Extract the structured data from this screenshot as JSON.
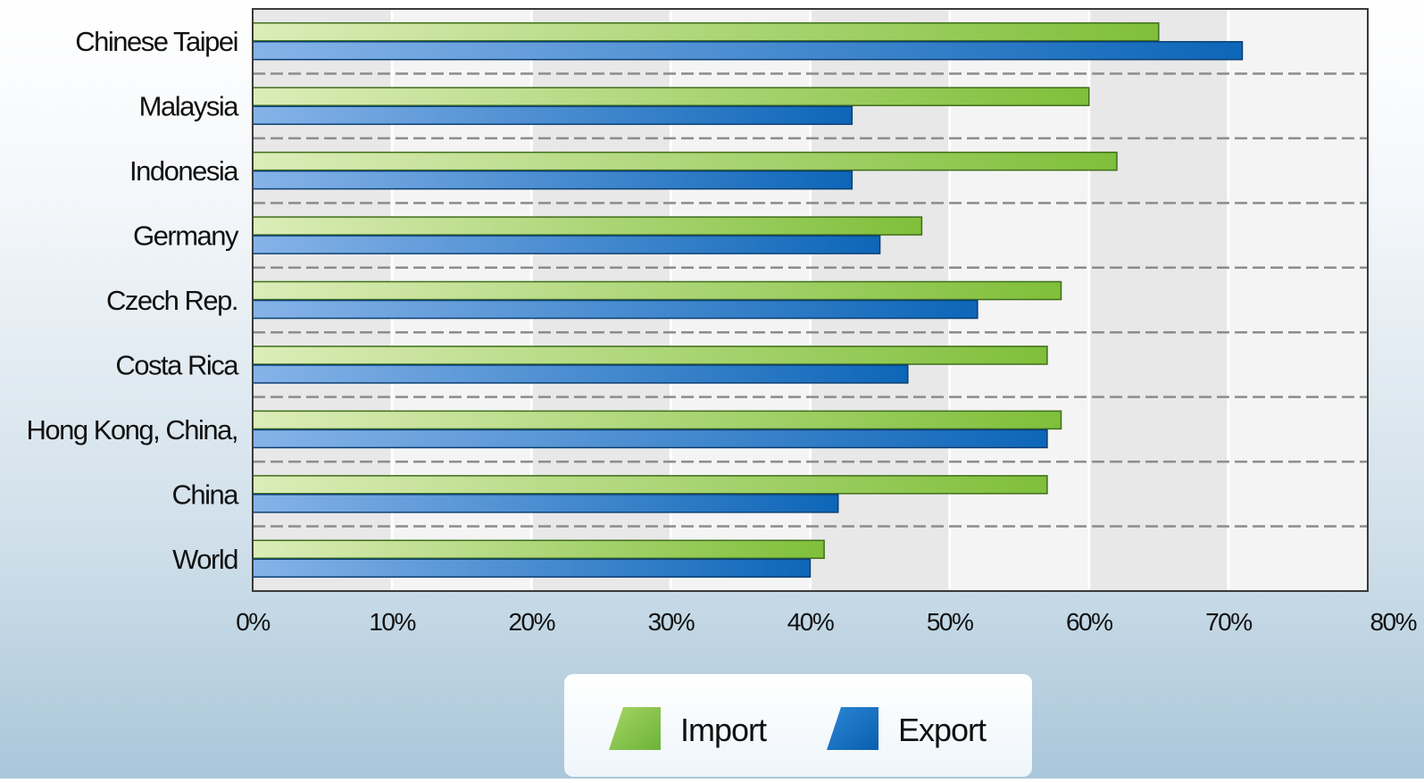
{
  "chart_data": {
    "type": "bar",
    "orientation": "horizontal",
    "categories": [
      "Chinese Taipei",
      "Malaysia",
      "Indonesia",
      "Germany",
      "Czech Rep.",
      "Costa Rica",
      "Hong Kong, China,",
      "China",
      "World"
    ],
    "series": [
      {
        "name": "Import",
        "values": [
          65,
          60,
          62,
          48,
          58,
          57,
          58,
          57,
          41
        ],
        "color": "#8cc63f"
      },
      {
        "name": "Export",
        "values": [
          71,
          43,
          43,
          45,
          52,
          47,
          57,
          42,
          40
        ],
        "color": "#1a74c4"
      }
    ],
    "x_ticks": [
      "0%",
      "10%",
      "20%",
      "30%",
      "40%",
      "50%",
      "60%",
      "70%",
      "80%"
    ],
    "xlim": [
      0,
      80
    ],
    "grid": "dashed horizontal separators, alternating vertical bands",
    "legend_position": "bottom-center"
  }
}
